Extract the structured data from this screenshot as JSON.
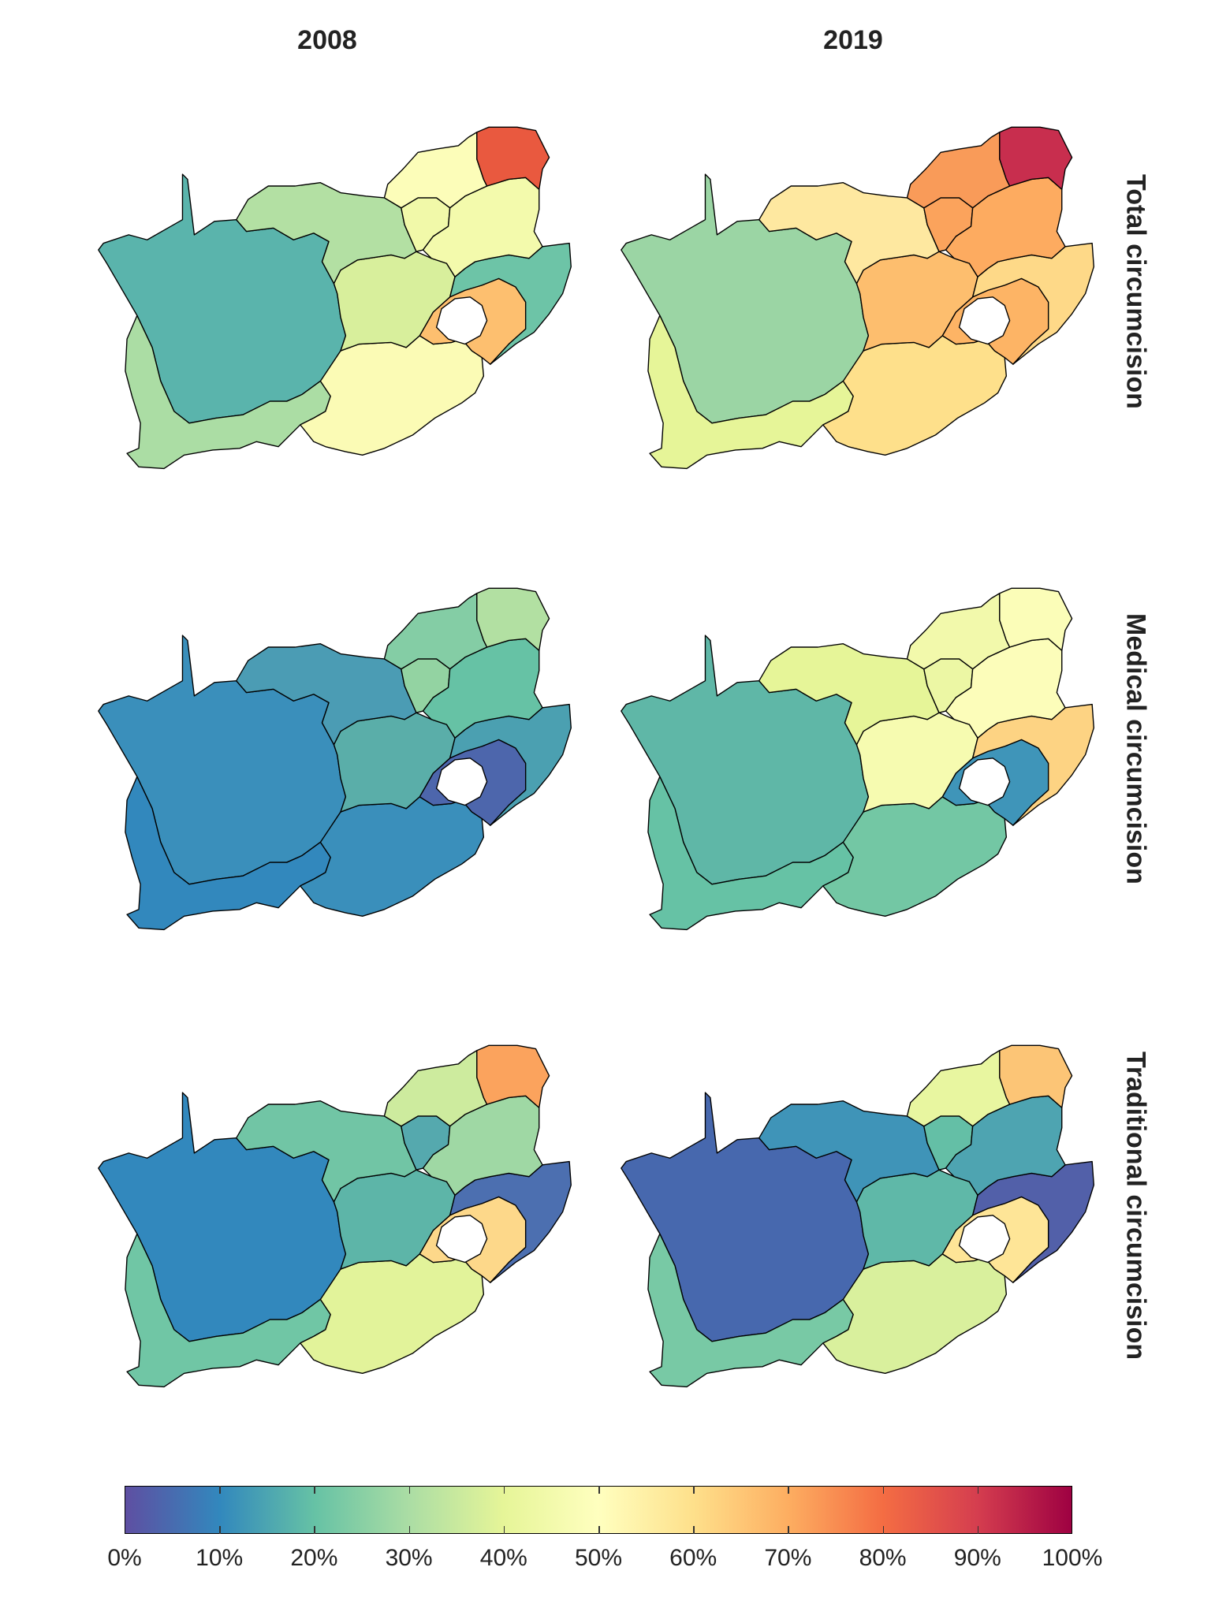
{
  "columns": [
    "2008",
    "2019"
  ],
  "rows": [
    "Total circumcision",
    "Medical circumcision",
    "Traditional circumcision"
  ],
  "colorbar": {
    "ticks": [
      "0%",
      "10%",
      "20%",
      "30%",
      "40%",
      "50%",
      "60%",
      "70%",
      "80%",
      "90%",
      "100%"
    ],
    "palette": [
      "#5e4fa2",
      "#3288bd",
      "#66c2a5",
      "#abdda4",
      "#e6f598",
      "#ffffbf",
      "#fee08b",
      "#fdae61",
      "#f46d43",
      "#d53e4f",
      "#9e0142"
    ]
  },
  "maps": [
    {
      "row": "Total circumcision",
      "year": "2008",
      "values": {
        "WC": 0.33,
        "NC": 0.2,
        "EC_W": 0.48,
        "EC_E": 0.66,
        "FS": 0.4,
        "KZN": 0.23,
        "NW": 0.31,
        "GP": 0.45,
        "MP": 0.46,
        "LP_W": 0.49,
        "LP_E": 0.83
      },
      "colors": {
        "WC": "#abdda4",
        "NC": "#5ab4ac",
        "EC_W": "#fbfbb5",
        "EC_E": "#fdbf6f",
        "FS": "#d8ef9c",
        "KZN": "#6dc4a7",
        "NW": "#b3e0a3",
        "GP": "#f1f9a9",
        "MP": "#f3faac",
        "LP_W": "#fcfdb9",
        "LP_E": "#e9593f"
      }
    },
    {
      "row": "Total circumcision",
      "year": "2019",
      "values": {
        "WC": 0.41,
        "NC": 0.27,
        "EC_W": 0.6,
        "EC_E": 0.68,
        "FS": 0.66,
        "KZN": 0.6,
        "NW": 0.55,
        "GP": 0.72,
        "MP": 0.7,
        "LP_W": 0.7,
        "LP_E": 0.95
      },
      "colors": {
        "WC": "#e6f598",
        "NC": "#9bd5a4",
        "EC_W": "#fee08b",
        "EC_E": "#fdb465",
        "FS": "#fdbe6e",
        "KZN": "#fed988",
        "NW": "#fee8a0",
        "GP": "#fba35c",
        "MP": "#fdab60",
        "LP_W": "#f99b59",
        "LP_E": "#c82e4e"
      }
    },
    {
      "row": "Medical circumcision",
      "year": "2008",
      "values": {
        "WC": 0.12,
        "NC": 0.11,
        "EC_W": 0.09,
        "EC_E": 0.05,
        "FS": 0.22,
        "KZN": 0.15,
        "NW": 0.16,
        "GP": 0.28,
        "MP": 0.2,
        "LP_W": 0.26,
        "LP_E": 0.33
      },
      "colors": {
        "WC": "#3288bd",
        "NC": "#3a8fbb",
        "EC_W": "#3a8fbb",
        "EC_E": "#4d66ac",
        "FS": "#5aaea9",
        "KZN": "#4ba0b1",
        "NW": "#4b9cb4",
        "GP": "#93d3a2",
        "MP": "#66c2a5",
        "LP_W": "#84cda5",
        "LP_E": "#b2e0a2"
      }
    },
    {
      "row": "Medical circumcision",
      "year": "2019",
      "values": {
        "WC": 0.2,
        "NC": 0.2,
        "EC_W": 0.2,
        "EC_E": 0.14,
        "FS": 0.46,
        "KZN": 0.58,
        "NW": 0.4,
        "GP": 0.45,
        "MP": 0.48,
        "LP_W": 0.44,
        "LP_E": 0.49
      },
      "colors": {
        "WC": "#66c2a5",
        "NC": "#5fb7a7",
        "EC_W": "#73c7a4",
        "EC_E": "#3f95b9",
        "FS": "#f6fbb0",
        "KZN": "#fdd383",
        "NW": "#e6f598",
        "GP": "#ecf7a4",
        "MP": "#fcfdba",
        "LP_W": "#f2f9ab",
        "LP_E": "#fbfdb8"
      }
    },
    {
      "row": "Traditional circumcision",
      "year": "2008",
      "values": {
        "WC": 0.21,
        "NC": 0.1,
        "EC_W": 0.38,
        "EC_E": 0.58,
        "FS": 0.22,
        "KZN": 0.06,
        "NW": 0.21,
        "GP": 0.17,
        "MP": 0.25,
        "LP_W": 0.35,
        "LP_E": 0.68
      },
      "colors": {
        "WC": "#70c6a5",
        "NC": "#3288bd",
        "EC_W": "#e2f39a",
        "EC_E": "#fdd88a",
        "FS": "#5db5a8",
        "KZN": "#4c6fb0",
        "NW": "#71c5a5",
        "GP": "#55a9ae",
        "MP": "#9fd8a4",
        "LP_W": "#cdeb9e",
        "LP_E": "#fba35d"
      }
    },
    {
      "row": "Traditional circumcision",
      "year": "2019",
      "values": {
        "WC": 0.22,
        "NC": 0.06,
        "EC_W": 0.36,
        "EC_E": 0.55,
        "FS": 0.2,
        "KZN": 0.05,
        "NW": 0.14,
        "GP": 0.19,
        "MP": 0.16,
        "LP_W": 0.39,
        "LP_E": 0.65
      },
      "colors": {
        "WC": "#78c9a5",
        "NC": "#4768ae",
        "EC_W": "#d9f09d",
        "EC_E": "#fee597",
        "FS": "#5fb8a8",
        "KZN": "#5260a9",
        "NW": "#3f94b8",
        "GP": "#64bfa6",
        "MP": "#4ea4b1",
        "LP_W": "#e8f6a0",
        "LP_E": "#fcc576"
      }
    }
  ]
}
